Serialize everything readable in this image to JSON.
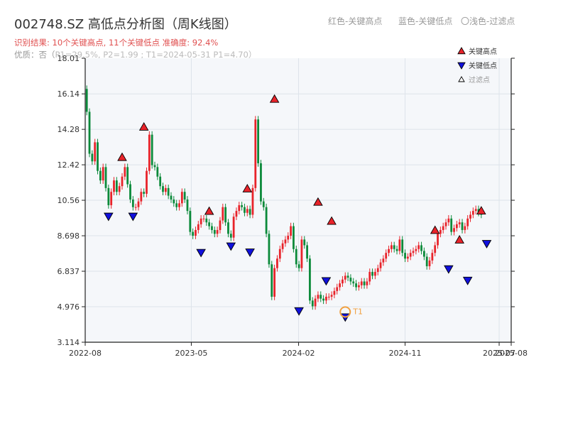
{
  "header": {
    "title": "002748.SZ 高低点分析图（周K线图）",
    "result": "识别结果: 10个关键高点, 11个关键低点  准确度: 92.4%",
    "quality_prefix": "优质：否（",
    "quality_params": "P1=29.5%, P2=1.99 ; T1=2024-05-31 P1=4.70）",
    "color_notes": [
      "红色-关键高点",
      "蓝色-关键低点",
      "〇浅色-过滤点"
    ]
  },
  "colors": {
    "up": "#e8232a",
    "down": "#0b8a3a",
    "high_marker": "#e8232a",
    "low_marker": "#1010dd",
    "filtered_marker": "#f0a040",
    "plot_bg": "#f5f7fa",
    "grid": "#dde3ea",
    "axis": "#222222"
  },
  "chart_data": {
    "type": "candlestick",
    "title": "002748.SZ 高低点分析图（周K线图）",
    "y_ticks": [
      "3.114",
      "4.976",
      "6.837",
      "8.698",
      "10.56",
      "12.42",
      "14.28",
      "16.14",
      "18.01"
    ],
    "ylim": [
      3.114,
      18.01
    ],
    "x_ticks": [
      {
        "label": "2022-08",
        "date": "2022-08"
      },
      {
        "label": "2023-05",
        "date": "2023-05"
      },
      {
        "label": "2024-02",
        "date": "2024-02"
      },
      {
        "label": "2024-11",
        "date": "2024-11"
      },
      {
        "label": "2025-07",
        "date": "2025-07"
      },
      {
        "label": "2025-08",
        "date": "2025-08"
      }
    ],
    "xlim": [
      "2022-08",
      "2025-08"
    ],
    "grid": true,
    "legend": {
      "placement": "top-right",
      "items": [
        {
          "label": "关键高点",
          "kind": "high"
        },
        {
          "label": "关键低点",
          "kind": "low"
        },
        {
          "label": "过滤点",
          "kind": "filtered"
        }
      ]
    },
    "closes": [
      15.2,
      13.0,
      12.6,
      13.6,
      12.1,
      11.6,
      12.3,
      11.2,
      10.3,
      11.0,
      11.6,
      11.0,
      11.3,
      11.8,
      12.3,
      11.4,
      10.6,
      10.2,
      10.2,
      10.5,
      11.0,
      10.9,
      12.1,
      14.0,
      12.4,
      12.3,
      11.8,
      11.3,
      11.0,
      11.2,
      10.8,
      10.6,
      10.4,
      10.2,
      10.4,
      11.0,
      10.6,
      10.0,
      8.9,
      8.7,
      9.0,
      9.3,
      9.6,
      9.6,
      9.4,
      9.2,
      9.0,
      8.8,
      9.0,
      9.5,
      10.2,
      9.4,
      8.8,
      8.6,
      9.7,
      10.0,
      10.3,
      10.2,
      9.9,
      10.1,
      9.8,
      11.2,
      14.8,
      12.5,
      10.5,
      10.2,
      8.8,
      7.2,
      5.5,
      7.0,
      7.5,
      8.0,
      8.3,
      8.5,
      8.7,
      9.2,
      8.0,
      7.2,
      7.0,
      8.5,
      8.2,
      7.5,
      5.3,
      5.0,
      5.4,
      5.6,
      5.4,
      5.3,
      5.5,
      5.5,
      5.6,
      5.8,
      6.0,
      6.2,
      6.4,
      6.6,
      6.5,
      6.3,
      6.2,
      6.0,
      6.1,
      6.3,
      6.1,
      6.3,
      6.8,
      6.6,
      6.8,
      7.0,
      7.3,
      7.5,
      7.8,
      8.0,
      8.2,
      8.0,
      7.9,
      8.5,
      7.8,
      7.5,
      7.6,
      7.8,
      7.9,
      8.0,
      8.2,
      7.9,
      7.6,
      7.1,
      7.4,
      7.8,
      8.2,
      8.8,
      9.0,
      9.2,
      9.4,
      9.6,
      8.9,
      9.1,
      9.3,
      9.4,
      9.0,
      9.2,
      9.6,
      9.8,
      10.0,
      10.1,
      9.9,
      9.8
    ],
    "key_highs": [
      {
        "date": "2022-11-04",
        "price": 12.55
      },
      {
        "date": "2022-12-30",
        "price": 14.14
      },
      {
        "date": "2023-06-16",
        "price": 9.72
      },
      {
        "date": "2023-09-22",
        "price": 10.9
      },
      {
        "date": "2023-12-01",
        "price": 15.6
      },
      {
        "date": "2024-03-22",
        "price": 10.2
      },
      {
        "date": "2024-04-26",
        "price": 9.2
      },
      {
        "date": "2025-01-17",
        "price": 8.72
      },
      {
        "date": "2025-03-21",
        "price": 8.22
      },
      {
        "date": "2025-05-16",
        "price": 9.74
      }
    ],
    "key_lows": [
      {
        "date": "2022-09-30",
        "price": 9.98
      },
      {
        "date": "2022-12-02",
        "price": 9.98
      },
      {
        "date": "2023-05-26",
        "price": 8.08
      },
      {
        "date": "2023-08-11",
        "price": 8.42
      },
      {
        "date": "2023-09-29",
        "price": 8.1
      },
      {
        "date": "2024-02-02",
        "price": 5.02
      },
      {
        "date": "2024-04-12",
        "price": 6.6
      },
      {
        "date": "2024-05-31",
        "price": 4.7
      },
      {
        "date": "2025-02-21",
        "price": 7.22
      },
      {
        "date": "2025-04-11",
        "price": 6.62
      },
      {
        "date": "2025-05-30",
        "price": 8.55
      }
    ],
    "filtered_points": [
      {
        "date": "2024-05-31",
        "price": 4.7,
        "label": "T1"
      }
    ]
  }
}
